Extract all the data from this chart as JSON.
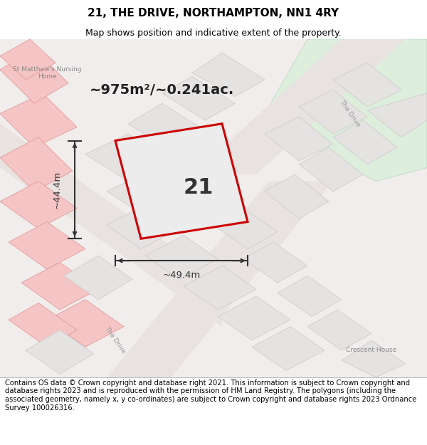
{
  "title": "21, THE DRIVE, NORTHAMPTON, NN1 4RY",
  "subtitle": "Map shows position and indicative extent of the property.",
  "footer": "Contains OS data © Crown copyright and database right 2021. This information is subject to Crown copyright and database rights 2023 and is reproduced with the permission of HM Land Registry. The polygons (including the associated geometry, namely x, y co-ordinates) are subject to Crown copyright and database rights 2023 Ordnance Survey 100026316.",
  "area_label": "~975m²/~0.241ac.",
  "property_label": "21",
  "width_label": "~49.4m",
  "height_label": "~44.4m",
  "title_fontsize": 11,
  "subtitle_fontsize": 9,
  "footer_fontsize": 7.2,
  "map_bg": "#f0edec",
  "property_fill": "#ececec",
  "property_outline": "#cc0000",
  "light_red_fill": "#f5c5c5",
  "med_red_ec": "#e09090",
  "gray_fill": "#e5e2e2",
  "gray_ec": "#ccc8c8",
  "green_fill": "#ddeedd",
  "green_ec": "#bbd4bb",
  "road_fill": "#e8e3e1",
  "dim_color": "#333333",
  "road_label_color": "#999999",
  "place_label_color": "#888888"
}
